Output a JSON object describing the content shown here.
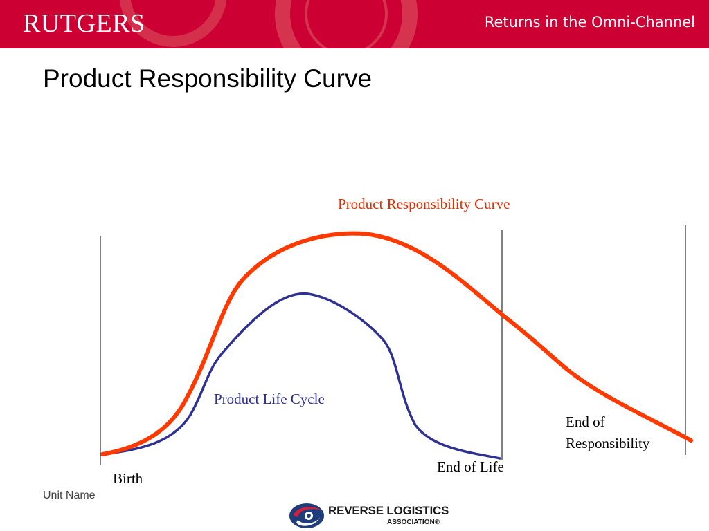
{
  "header": {
    "logo_text": "RUTGERS",
    "title": "Returns in the Omni-Channel",
    "background": "#cc0033"
  },
  "page": {
    "title": "Product Responsibility Curve"
  },
  "diagram": {
    "curves": [
      {
        "label": "Product Responsibility Curve",
        "color": "#ff3a00",
        "label_color": "#e52d00"
      },
      {
        "label": "Product Life Cycle",
        "color": "#2e3192",
        "label_color": "#2e3192"
      }
    ],
    "markers": [
      "Birth",
      "End of Life",
      "End of Responsibility"
    ],
    "marker_labels": {
      "birth": "Birth",
      "end_of_life": "End of Life",
      "end_of_responsibility": "End of Responsibility"
    }
  },
  "footer": {
    "unit_name": "Unit Name",
    "logo_name": "REVERSE LOGISTICS",
    "logo_sub": "ASSOCIATION",
    "logo_mark": "®"
  }
}
